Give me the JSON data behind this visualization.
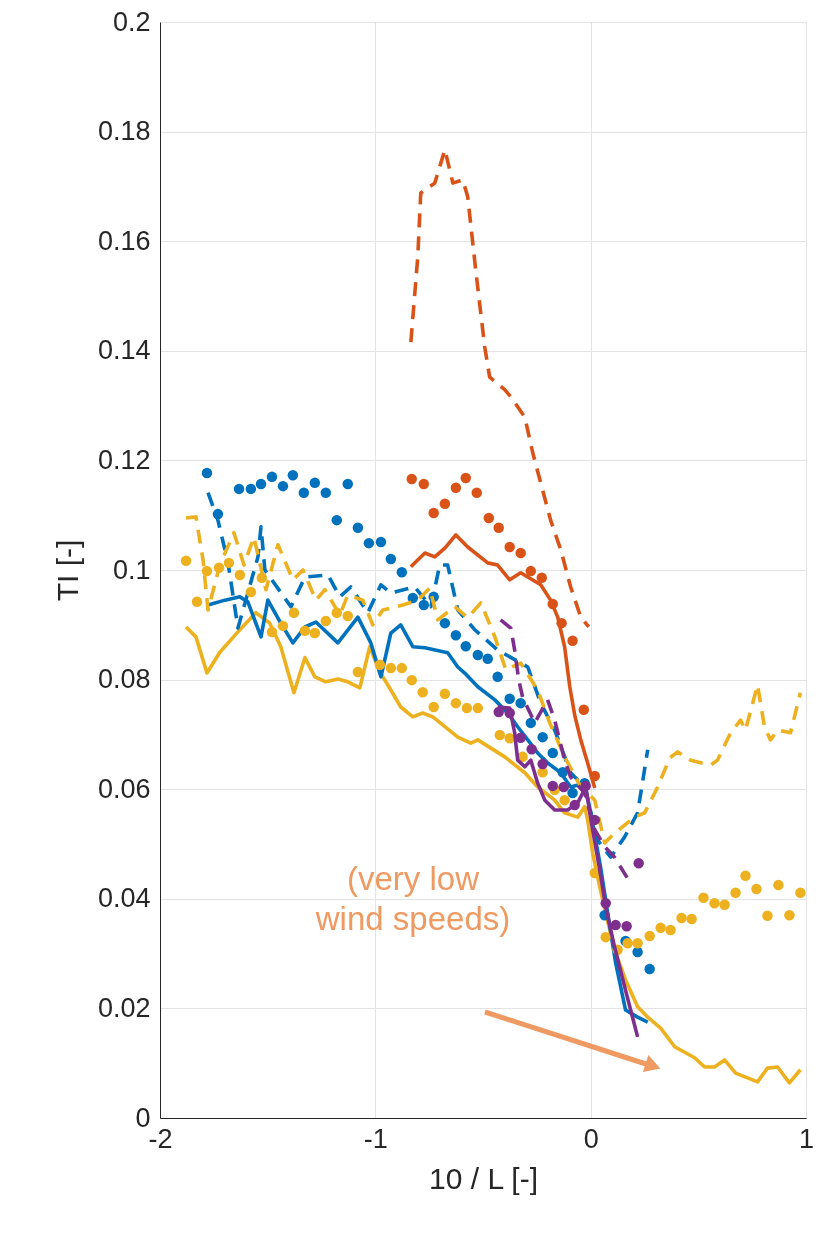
{
  "chart_data": {
    "type": "line",
    "xlabel": "10 / L [-]",
    "ylabel": "TI [-]",
    "xlim": [
      -2,
      1
    ],
    "xticks": [
      -2,
      -1,
      0,
      1
    ],
    "ylim": [
      0,
      0.2
    ],
    "yticks": [
      0,
      0.02,
      0.04,
      0.06,
      0.08,
      0.1,
      0.12,
      0.14,
      0.16,
      0.18,
      0.2
    ],
    "grid": true,
    "annotations": [
      "(very low\nwind speeds)"
    ],
    "series": [
      {
        "line_style": "solid",
        "marker": "none",
        "color": "#edb120",
        "x": [
          -1.879,
          -1.833,
          -1.782,
          -1.722,
          -1.638,
          -1.555,
          -1.49,
          -1.439,
          -1.378,
          -1.327,
          -1.281,
          -1.23,
          -1.174,
          -1.128,
          -1.072,
          -1.026,
          -0.979,
          -0.928,
          -0.882,
          -0.826,
          -0.78,
          -0.733,
          -0.617,
          -0.557,
          -0.524,
          -0.399,
          -0.306,
          -0.246,
          -0.167,
          -0.121,
          -0.06,
          -0.028,
          -0.014,
          0.009,
          0.042,
          0.07,
          0.111,
          0.162,
          0.218,
          0.265,
          0.325,
          0.39,
          0.483,
          0.529,
          0.575,
          0.622,
          0.673,
          0.775,
          0.821,
          0.868,
          0.923,
          0.974
        ],
        "values": [
          0.0896,
          0.0878,
          0.0812,
          0.085,
          0.0887,
          0.0922,
          0.0903,
          0.086,
          0.0776,
          0.084,
          0.0805,
          0.0796,
          0.0801,
          0.0796,
          0.0785,
          0.086,
          0.0814,
          0.0781,
          0.075,
          0.0732,
          0.0739,
          0.0732,
          0.0695,
          0.0684,
          0.069,
          0.0659,
          0.063,
          0.0604,
          0.058,
          0.0557,
          0.0549,
          0.0568,
          0.0544,
          0.0484,
          0.0422,
          0.0374,
          0.0307,
          0.0252,
          0.0203,
          0.0184,
          0.0164,
          0.013,
          0.011,
          0.0093,
          0.0093,
          0.0106,
          0.0082,
          0.0066,
          0.0091,
          0.0093,
          0.0064,
          0.0088
        ]
      },
      {
        "line_style": "solid",
        "marker": "none",
        "color": "#0072bd",
        "x": [
          -1.777,
          -1.698,
          -1.629,
          -1.592,
          -1.531,
          -1.499,
          -1.439,
          -1.383,
          -1.327,
          -1.276,
          -1.174,
          -1.081,
          -1.021,
          -0.974,
          -0.928,
          -0.882,
          -0.826,
          -0.77,
          -0.664,
          -0.617,
          -0.585,
          -0.524,
          -0.445,
          -0.385,
          -0.339,
          -0.292,
          -0.246,
          -0.2,
          -0.139,
          -0.093,
          -0.028,
          0.0,
          0.046,
          0.079,
          0.116,
          0.162,
          0.218,
          0.265
        ],
        "values": [
          0.0936,
          0.0945,
          0.0951,
          0.0942,
          0.0878,
          0.0945,
          0.0903,
          0.0867,
          0.0896,
          0.0905,
          0.0867,
          0.0914,
          0.0867,
          0.0805,
          0.0885,
          0.09,
          0.086,
          0.0858,
          0.0849,
          0.0823,
          0.0812,
          0.0787,
          0.0763,
          0.0739,
          0.0714,
          0.069,
          0.0666,
          0.0648,
          0.063,
          0.0604,
          0.0611,
          0.0557,
          0.0458,
          0.0374,
          0.0283,
          0.0197,
          0.0184,
          0.0175
        ]
      },
      {
        "line_style": "dashed",
        "marker": "none",
        "color": "#0072bd",
        "x": [
          -1.777,
          -1.731,
          -1.684,
          -1.638,
          -1.545,
          -1.531,
          -1.513,
          -1.392,
          -1.327,
          -1.22,
          -1.165,
          -1.114,
          -1.035,
          -0.974,
          -0.928,
          -0.817,
          -0.742,
          -0.701,
          -0.664,
          -0.617,
          -0.538,
          -0.432,
          -0.292,
          -0.232,
          -0.167,
          -0.093,
          -0.028,
          0.032,
          0.093,
          0.158,
          0.218,
          0.265
        ],
        "values": [
          0.1141,
          0.1091,
          0.1013,
          0.0894,
          0.1024,
          0.1079,
          0.1,
          0.0933,
          0.0987,
          0.0991,
          0.0951,
          0.0969,
          0.0922,
          0.0973,
          0.0958,
          0.0969,
          0.0933,
          0.1009,
          0.1009,
          0.0927,
          0.0891,
          0.0854,
          0.0823,
          0.0757,
          0.0708,
          0.063,
          0.0604,
          0.0507,
          0.0476,
          0.0513,
          0.0557,
          0.0672
        ]
      },
      {
        "type": "scatter",
        "marker": "circle",
        "color": "#0072bd",
        "x": [
          -1.782,
          -1.731,
          -1.633,
          -1.578,
          -1.531,
          -1.48,
          -1.429,
          -1.383,
          -1.332,
          -1.281,
          -1.23,
          -1.179,
          -1.128,
          -1.081,
          -1.03,
          -0.974,
          -0.928,
          -0.877,
          -0.826,
          -0.775,
          -0.729,
          -0.677,
          -0.626,
          -0.58,
          -0.524,
          -0.478,
          -0.432,
          -0.376,
          -0.325,
          -0.278,
          -0.223,
          -0.176,
          -0.13,
          -0.084,
          -0.028,
          0.065,
          0.162,
          0.218,
          0.274
        ],
        "values": [
          0.1177,
          0.1102,
          0.1148,
          0.1148,
          0.1157,
          0.117,
          0.1153,
          0.1173,
          0.1141,
          0.1159,
          0.1141,
          0.1091,
          0.1157,
          0.1077,
          0.1049,
          0.1051,
          0.102,
          0.0996,
          0.0949,
          0.0936,
          0.0951,
          0.0903,
          0.0881,
          0.0861,
          0.0845,
          0.0838,
          0.0805,
          0.0765,
          0.0757,
          0.0721,
          0.0695,
          0.0666,
          0.0631,
          0.0593,
          0.0611,
          0.037,
          0.0323,
          0.0303,
          0.0272
        ]
      },
      {
        "line_style": "dashed",
        "marker": "none",
        "color": "#d95319",
        "x": [
          -0.835,
          -0.803,
          -0.789,
          -0.724,
          -0.677,
          -0.64,
          -0.594,
          -0.571,
          -0.534,
          -0.492,
          -0.469,
          -0.399,
          -0.371,
          -0.306,
          -0.269,
          -0.232,
          -0.186,
          -0.139,
          -0.093,
          -0.046,
          -0.009
        ],
        "values": [
          0.1416,
          0.1571,
          0.1688,
          0.1706,
          0.1767,
          0.1706,
          0.1712,
          0.1681,
          0.1548,
          0.1407,
          0.1352,
          0.1329,
          0.1316,
          0.1279,
          0.1214,
          0.1159,
          0.1091,
          0.1037,
          0.0969,
          0.0914,
          0.0896
        ]
      },
      {
        "line_style": "solid",
        "marker": "none",
        "color": "#d95319",
        "x": [
          -0.835,
          -0.77,
          -0.724,
          -0.677,
          -0.626,
          -0.571,
          -0.478,
          -0.432,
          -0.376,
          -0.325,
          -0.232,
          -0.186,
          -0.153,
          -0.121,
          -0.097,
          -0.074,
          -0.046,
          -0.014,
          0.019
        ],
        "values": [
          0.1006,
          0.1031,
          0.1024,
          0.104,
          0.1064,
          0.1042,
          0.1013,
          0.1009,
          0.0982,
          0.0995,
          0.0973,
          0.0945,
          0.0914,
          0.086,
          0.0787,
          0.0735,
          0.069,
          0.0648,
          0.0602
        ]
      },
      {
        "type": "scatter",
        "marker": "circle",
        "color": "#d95319",
        "x": [
          -0.831,
          -0.775,
          -0.729,
          -0.677,
          -0.626,
          -0.58,
          -0.529,
          -0.473,
          -0.427,
          -0.376,
          -0.325,
          -0.278,
          -0.227,
          -0.176,
          -0.135,
          -0.084,
          -0.032,
          0.019
        ],
        "values": [
          0.1166,
          0.1157,
          0.1104,
          0.1121,
          0.115,
          0.1168,
          0.1141,
          0.1095,
          0.1077,
          0.1042,
          0.1031,
          0.0998,
          0.0986,
          0.0938,
          0.0903,
          0.0871,
          0.0745,
          0.0624
        ]
      },
      {
        "line_style": "dashed",
        "marker": "none",
        "color": "#edb120",
        "x": [
          -1.879,
          -1.833,
          -1.8,
          -1.777,
          -1.722,
          -1.657,
          -1.61,
          -1.564,
          -1.508,
          -1.452,
          -1.383,
          -1.336,
          -1.276,
          -1.234,
          -1.165,
          -1.128,
          -1.058,
          -1.012,
          -0.965,
          -0.872,
          -0.803,
          -0.747,
          -0.71,
          -0.631,
          -0.571,
          -0.51,
          -0.445,
          -0.394,
          -0.325,
          -0.246,
          -0.19,
          -0.121,
          -0.051,
          0.019,
          0.065,
          0.111,
          0.204,
          0.251,
          0.311,
          0.367,
          0.404,
          0.464,
          0.557,
          0.589,
          0.65,
          0.696,
          0.719,
          0.775,
          0.807,
          0.835,
          0.868,
          0.928,
          0.974
        ],
        "values": [
          0.1095,
          0.1097,
          0.1018,
          0.0927,
          0.1009,
          0.1068,
          0.1009,
          0.106,
          0.0964,
          0.1046,
          0.0982,
          0.1,
          0.0945,
          0.0964,
          0.0918,
          0.0954,
          0.0945,
          0.09,
          0.0927,
          0.0936,
          0.0945,
          0.0967,
          0.0909,
          0.0933,
          0.0913,
          0.094,
          0.0878,
          0.0818,
          0.083,
          0.0781,
          0.0721,
          0.0659,
          0.0608,
          0.058,
          0.0502,
          0.052,
          0.0549,
          0.0557,
          0.0604,
          0.0657,
          0.0668,
          0.0653,
          0.0644,
          0.0653,
          0.0703,
          0.0726,
          0.0708,
          0.079,
          0.0714,
          0.069,
          0.0708,
          0.0703,
          0.0776
        ]
      },
      {
        "type": "scatter",
        "marker": "circle",
        "color": "#edb120",
        "x": [
          -1.879,
          -1.828,
          -1.782,
          -1.726,
          -1.68,
          -1.629,
          -1.578,
          -1.527,
          -1.48,
          -1.429,
          -1.378,
          -1.327,
          -1.281,
          -1.23,
          -1.179,
          -1.128,
          -1.081,
          -0.979,
          -0.928,
          -0.877,
          -0.831,
          -0.78,
          -0.729,
          -0.677,
          -0.626,
          -0.575,
          -0.524,
          -0.422,
          -0.376,
          -0.316,
          -0.223,
          -0.167,
          -0.121,
          0.019,
          0.07,
          0.125,
          0.172,
          0.218,
          0.274,
          0.325,
          0.371,
          0.422,
          0.469,
          0.524,
          0.575,
          0.622,
          0.673,
          0.719,
          0.77,
          0.821,
          0.872,
          0.923,
          0.974
        ],
        "values": [
          0.1017,
          0.0942,
          0.0998,
          0.1004,
          0.1013,
          0.0991,
          0.096,
          0.0986,
          0.0887,
          0.0898,
          0.0922,
          0.0889,
          0.0885,
          0.0907,
          0.0922,
          0.0916,
          0.0814,
          0.0827,
          0.0821,
          0.0821,
          0.0799,
          0.0777,
          0.075,
          0.0774,
          0.0757,
          0.0748,
          0.0748,
          0.0699,
          0.0693,
          0.0659,
          0.0631,
          0.0599,
          0.058,
          0.0447,
          0.033,
          0.0307,
          0.0319,
          0.0319,
          0.0332,
          0.0347,
          0.0343,
          0.0365,
          0.0363,
          0.0402,
          0.0392,
          0.0389,
          0.0411,
          0.0442,
          0.0418,
          0.0369,
          0.0425,
          0.037,
          0.0411
        ]
      },
      {
        "line_style": "dashed",
        "marker": "none",
        "color": "#7e2f8e",
        "x": [
          -0.418,
          -0.371,
          -0.353,
          -0.334,
          -0.316,
          -0.26,
          -0.2,
          -0.167,
          -0.121,
          -0.093,
          -0.028,
          0.019,
          0.065,
          0.111,
          0.181
        ],
        "values": [
          0.0909,
          0.0894,
          0.0854,
          0.0799,
          0.0768,
          0.0721,
          0.0763,
          0.0726,
          0.0653,
          0.0622,
          0.0593,
          0.0526,
          0.0495,
          0.0476,
          0.0431
        ]
      },
      {
        "line_style": "solid",
        "marker": "none",
        "color": "#7e2f8e",
        "x": [
          -0.432,
          -0.376,
          -0.353,
          -0.339,
          -0.306,
          -0.278,
          -0.246,
          -0.213,
          -0.167,
          -0.107,
          -0.06,
          -0.023,
          0.009,
          0.042,
          0.07,
          0.111,
          0.158,
          0.218
        ],
        "values": [
          0.075,
          0.0748,
          0.0703,
          0.0653,
          0.0641,
          0.0653,
          0.0611,
          0.058,
          0.0562,
          0.0562,
          0.0575,
          0.0604,
          0.0526,
          0.0453,
          0.0385,
          0.0312,
          0.0239,
          0.0148
        ]
      },
      {
        "type": "scatter",
        "marker": "circle",
        "color": "#7e2f8e",
        "x": [
          -0.427,
          -0.376,
          -0.325,
          -0.274,
          -0.223,
          -0.176,
          -0.125,
          -0.074,
          -0.023,
          0.019,
          0.07,
          0.116,
          0.167,
          0.223
        ],
        "values": [
          0.0741,
          0.0739,
          0.0694,
          0.0673,
          0.0646,
          0.0606,
          0.0604,
          0.0571,
          0.0606,
          0.0544,
          0.0392,
          0.0352,
          0.035,
          0.0465
        ]
      }
    ]
  }
}
